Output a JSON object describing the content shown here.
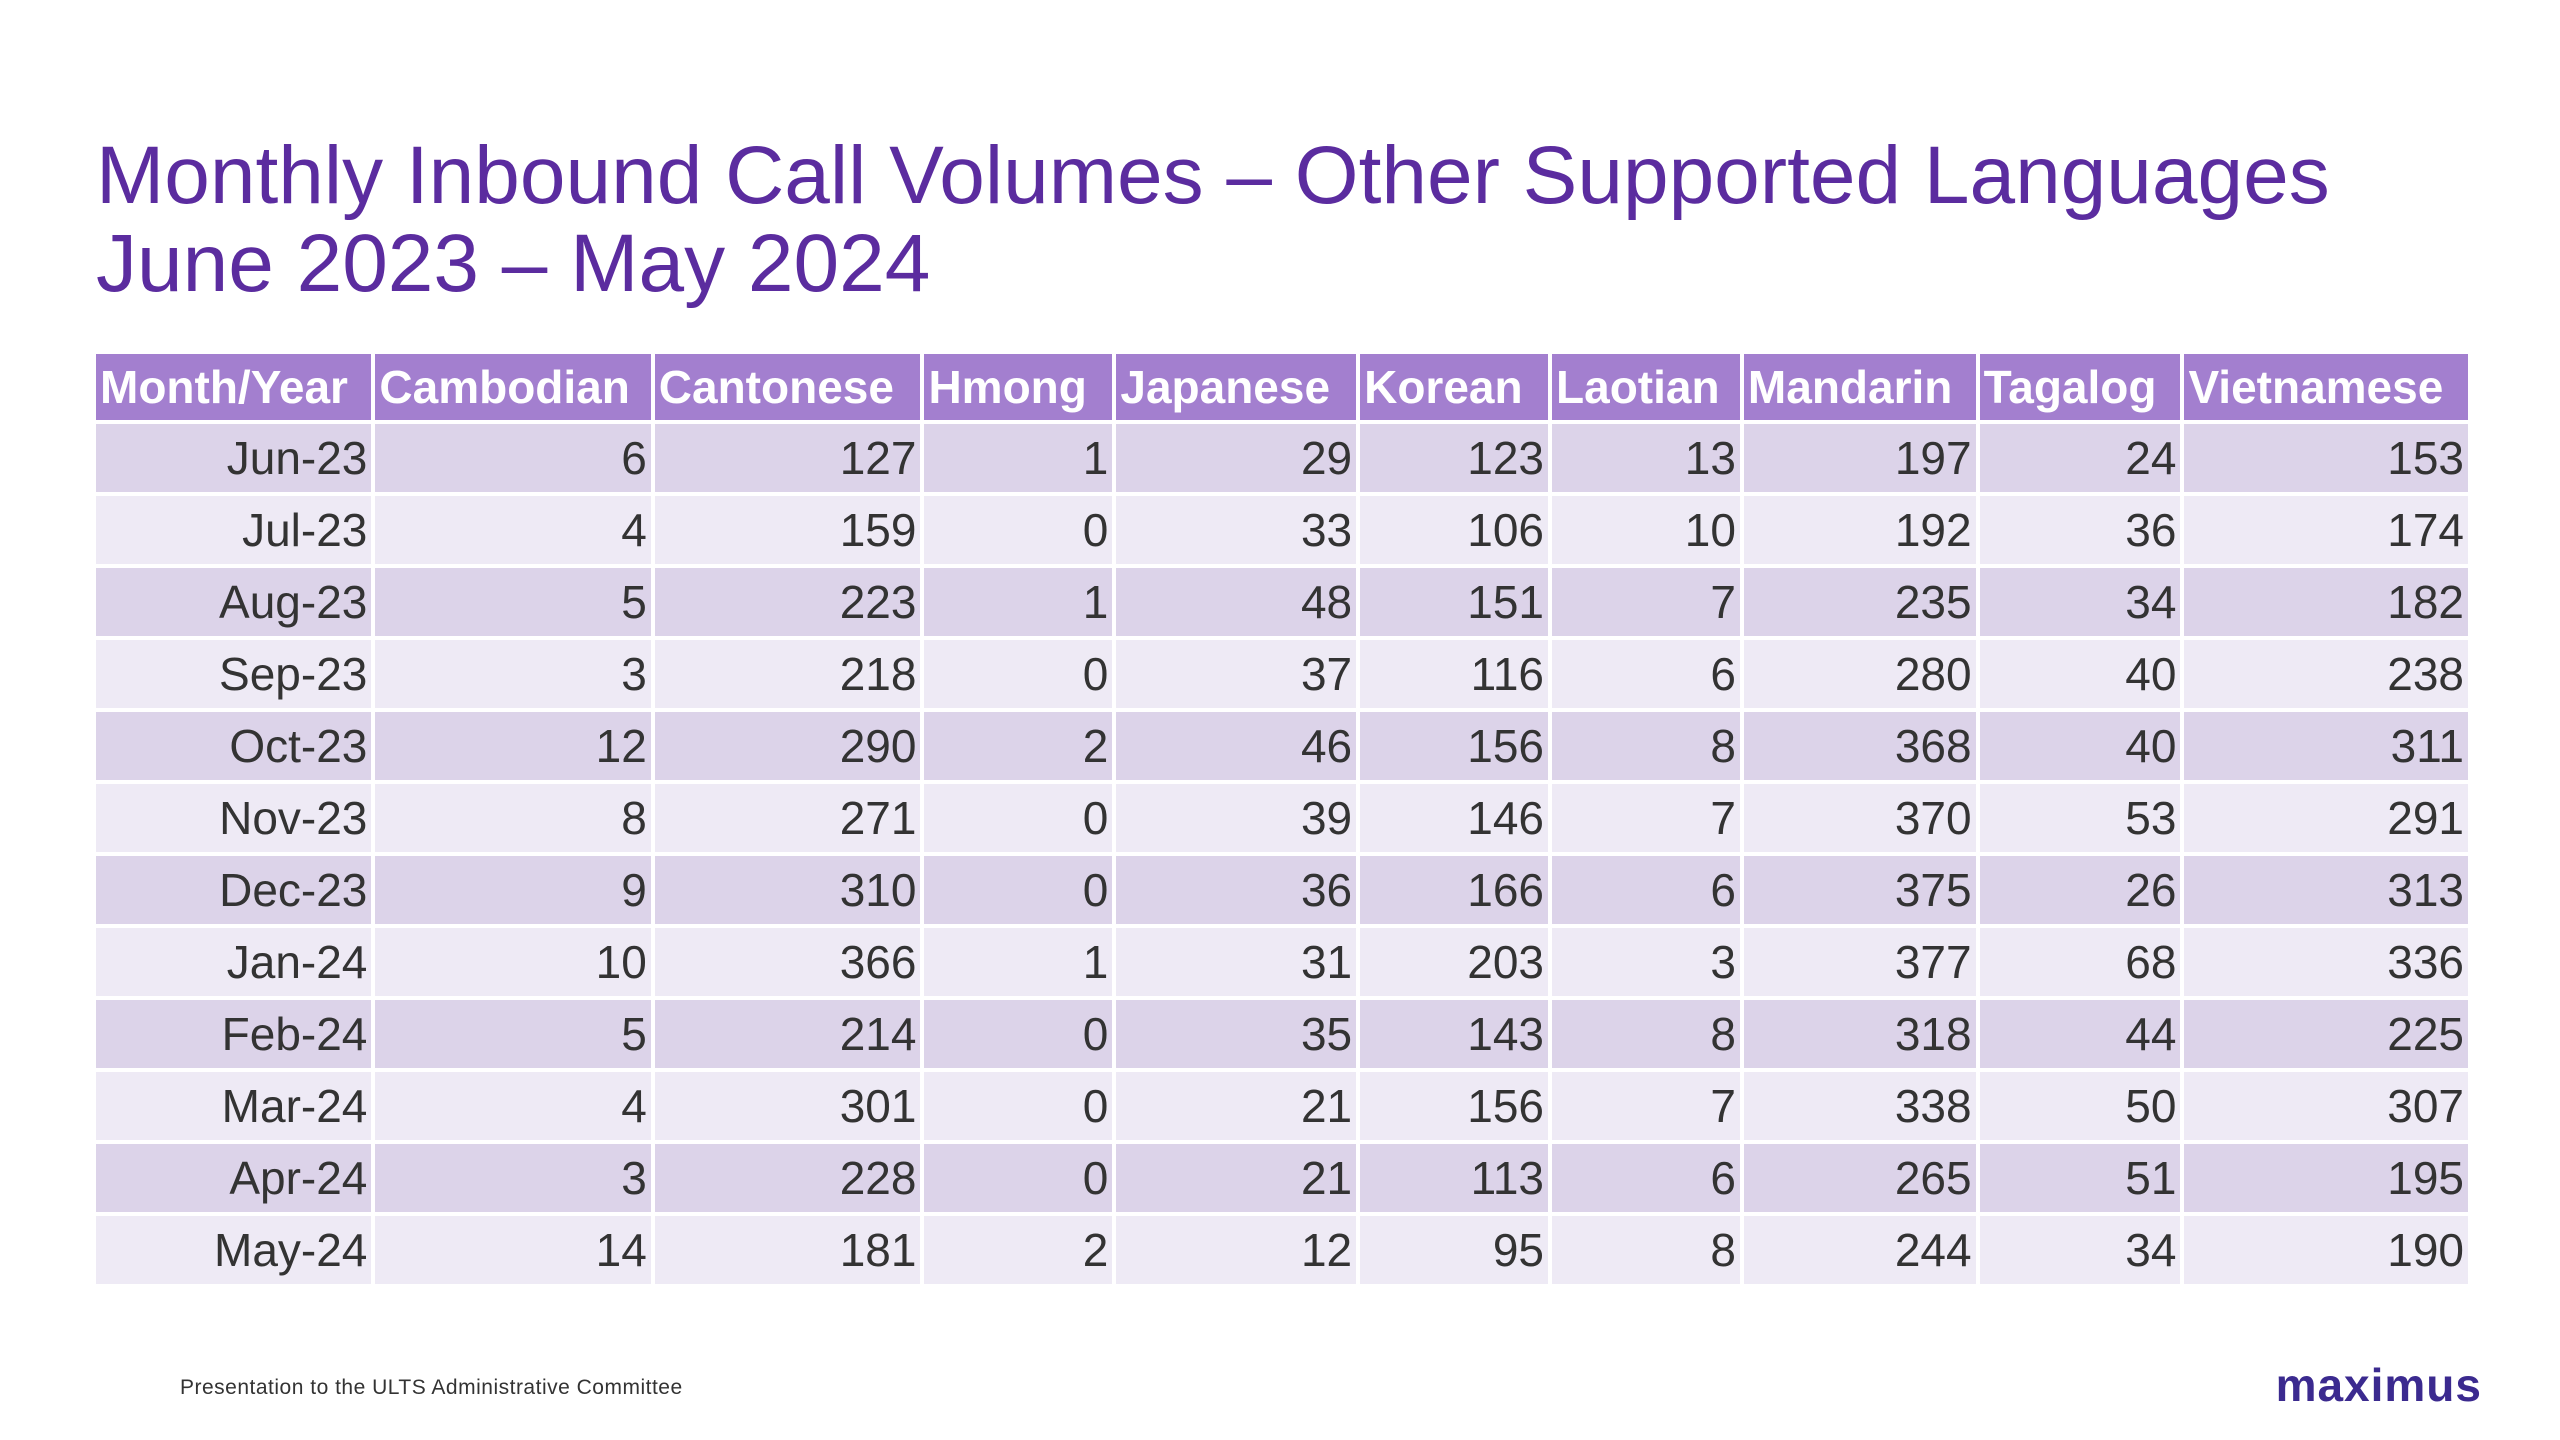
{
  "title": {
    "line1": "Monthly Inbound Call Volumes – Other Supported Languages",
    "line2": "June 2023 – May 2024"
  },
  "table": {
    "headers": [
      "Month/Year",
      "Cambodian",
      "Cantonese",
      "Hmong",
      "Japanese",
      "Korean",
      "Laotian",
      "Mandarin",
      "Tagalog",
      "Vietnamese"
    ],
    "rows": [
      [
        "Jun-23",
        "6",
        "127",
        "1",
        "29",
        "123",
        "13",
        "197",
        "24",
        "153"
      ],
      [
        "Jul-23",
        "4",
        "159",
        "0",
        "33",
        "106",
        "10",
        "192",
        "36",
        "174"
      ],
      [
        "Aug-23",
        "5",
        "223",
        "1",
        "48",
        "151",
        "7",
        "235",
        "34",
        "182"
      ],
      [
        "Sep-23",
        "3",
        "218",
        "0",
        "37",
        "116",
        "6",
        "280",
        "40",
        "238"
      ],
      [
        "Oct-23",
        "12",
        "290",
        "2",
        "46",
        "156",
        "8",
        "368",
        "40",
        "311"
      ],
      [
        "Nov-23",
        "8",
        "271",
        "0",
        "39",
        "146",
        "7",
        "370",
        "53",
        "291"
      ],
      [
        "Dec-23",
        "9",
        "310",
        "0",
        "36",
        "166",
        "6",
        "375",
        "26",
        "313"
      ],
      [
        "Jan-24",
        "10",
        "366",
        "1",
        "31",
        "203",
        "3",
        "377",
        "68",
        "336"
      ],
      [
        "Feb-24",
        "5",
        "214",
        "0",
        "35",
        "143",
        "8",
        "318",
        "44",
        "225"
      ],
      [
        "Mar-24",
        "4",
        "301",
        "0",
        "21",
        "156",
        "7",
        "338",
        "50",
        "307"
      ],
      [
        "Apr-24",
        "3",
        "228",
        "0",
        "21",
        "113",
        "6",
        "265",
        "51",
        "195"
      ],
      [
        "May-24",
        "14",
        "181",
        "2",
        "12",
        "95",
        "8",
        "244",
        "34",
        "190"
      ]
    ]
  },
  "footer": {
    "text": "Presentation to the ULTS Administrative Committee",
    "logo": "maximus"
  },
  "colors": {
    "title": "#5b2c9f",
    "header_bg": "#a37fcf",
    "row_odd": "#dcd3e9",
    "row_even": "#eeeaf5",
    "logo": "#3b2a8f"
  }
}
